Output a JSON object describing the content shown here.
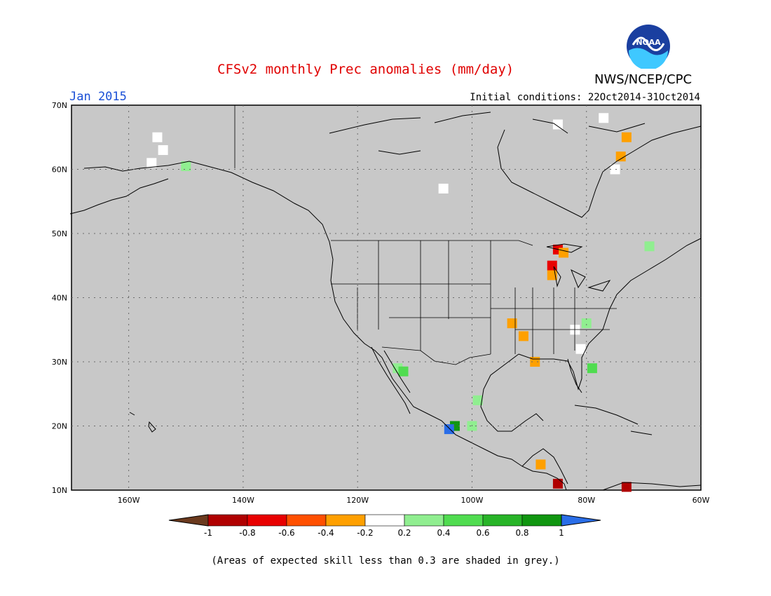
{
  "figure": {
    "title": "CFSv2 monthly Prec anomalies (mm/day)",
    "month": "Jan 2015",
    "agency": "NWS/NCEP/CPC",
    "initial_conditions": "Initial conditions: 22Oct2014-31Oct2014",
    "logo_text": "NOAA",
    "footnote": "(Areas of expected skill less than 0.3 are shaded in grey.)"
  },
  "map": {
    "lon_range": [
      -170,
      -60
    ],
    "lat_range": [
      10,
      70
    ],
    "lon_ticks": [
      "160W",
      "140W",
      "120W",
      "100W",
      "80W",
      "60W"
    ],
    "lat_ticks": [
      "70N",
      "60N",
      "50N",
      "40N",
      "30N",
      "20N",
      "10N"
    ],
    "background_color": "#c8c8c8",
    "gridlines": "dotted",
    "anomaly_cells": [
      {
        "lon": -155,
        "lat": 65,
        "category": "white"
      },
      {
        "lon": -154,
        "lat": 63,
        "category": "white"
      },
      {
        "lon": -156,
        "lat": 61,
        "category": "white"
      },
      {
        "lon": -150,
        "lat": 60.5,
        "category": "light-green"
      },
      {
        "lon": -105,
        "lat": 57,
        "category": "white"
      },
      {
        "lon": -75,
        "lat": 60,
        "category": "white"
      },
      {
        "lon": -74,
        "lat": 62,
        "category": "orange"
      },
      {
        "lon": -73,
        "lat": 65,
        "category": "orange"
      },
      {
        "lon": -85,
        "lat": 67,
        "category": "white"
      },
      {
        "lon": -77,
        "lat": 68,
        "category": "white"
      },
      {
        "lon": -85,
        "lat": 47.5,
        "category": "red"
      },
      {
        "lon": -84,
        "lat": 47,
        "category": "orange"
      },
      {
        "lon": -86,
        "lat": 45,
        "category": "red"
      },
      {
        "lon": -86,
        "lat": 43.5,
        "category": "orange"
      },
      {
        "lon": -93,
        "lat": 36,
        "category": "orange"
      },
      {
        "lon": -91,
        "lat": 34,
        "category": "orange"
      },
      {
        "lon": -89,
        "lat": 30,
        "category": "orange"
      },
      {
        "lon": -82,
        "lat": 35,
        "category": "white"
      },
      {
        "lon": -80,
        "lat": 36,
        "category": "light-green"
      },
      {
        "lon": -81,
        "lat": 32,
        "category": "white"
      },
      {
        "lon": -79,
        "lat": 29,
        "category": "green"
      },
      {
        "lon": -69,
        "lat": 48,
        "category": "light-green"
      },
      {
        "lon": -113,
        "lat": 29,
        "category": "light-green"
      },
      {
        "lon": -112,
        "lat": 28.5,
        "category": "green"
      },
      {
        "lon": -100,
        "lat": 20,
        "category": "light-green"
      },
      {
        "lon": -103,
        "lat": 20,
        "category": "dark-green"
      },
      {
        "lon": -104,
        "lat": 19.5,
        "category": "blue"
      },
      {
        "lon": -99,
        "lat": 24,
        "category": "light-green"
      },
      {
        "lon": -88,
        "lat": 14,
        "category": "orange"
      },
      {
        "lon": -85,
        "lat": 11,
        "category": "dark-red"
      },
      {
        "lon": -73,
        "lat": 10.5,
        "category": "dark-red"
      }
    ]
  },
  "legend": {
    "labels": [
      "-1",
      "-0.8",
      "-0.6",
      "-0.4",
      "-0.2",
      "0.2",
      "0.4",
      "0.6",
      "0.8",
      "1"
    ],
    "colors": [
      "#6b3a1e",
      "#b00000",
      "#e80000",
      "#ff5000",
      "#ffa000",
      "#ffffff",
      "#90ee90",
      "#50dc50",
      "#28b428",
      "#109610",
      "#2a6ee8"
    ]
  },
  "colors": {
    "white": "#ffffff",
    "light-green": "#90ee90",
    "green": "#50dc50",
    "dark-green": "#109610",
    "blue": "#2a6ee8",
    "orange": "#ffa000",
    "red": "#e80000",
    "dark-red": "#b00000"
  }
}
